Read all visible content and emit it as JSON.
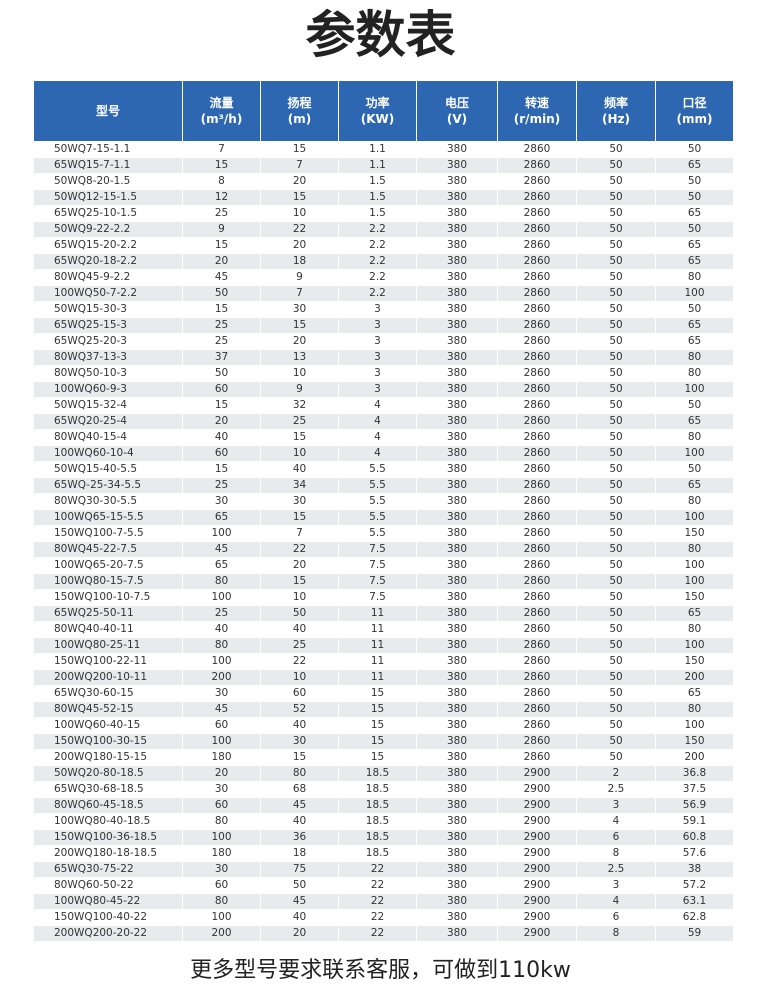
{
  "header": {
    "title": "参数表"
  },
  "table": {
    "columns": [
      {
        "name": "型号"
      },
      {
        "name": "流量",
        "unit": "(m³/h)"
      },
      {
        "name": "扬程",
        "unit": "(m)"
      },
      {
        "name": "功率",
        "unit": "(KW)"
      },
      {
        "name": "电压",
        "unit": "(V)"
      },
      {
        "name": "转速",
        "unit": "(r/min)"
      },
      {
        "name": "频率",
        "unit": "(Hz)"
      },
      {
        "name": "口径",
        "unit": "(mm)"
      }
    ],
    "rows": [
      [
        "50WQ7-15-1.1",
        "7",
        "15",
        "1.1",
        "380",
        "2860",
        "50",
        "50"
      ],
      [
        "65WQ15-7-1.1",
        "15",
        "7",
        "1.1",
        "380",
        "2860",
        "50",
        "65"
      ],
      [
        "50WQ8-20-1.5",
        "8",
        "20",
        "1.5",
        "380",
        "2860",
        "50",
        "50"
      ],
      [
        "50WQ12-15-1.5",
        "12",
        "15",
        "1.5",
        "380",
        "2860",
        "50",
        "50"
      ],
      [
        "65WQ25-10-1.5",
        "25",
        "10",
        "1.5",
        "380",
        "2860",
        "50",
        "65"
      ],
      [
        "50WQ9-22-2.2",
        "9",
        "22",
        "2.2",
        "380",
        "2860",
        "50",
        "50"
      ],
      [
        "65WQ15-20-2.2",
        "15",
        "20",
        "2.2",
        "380",
        "2860",
        "50",
        "65"
      ],
      [
        "65WQ20-18-2.2",
        "20",
        "18",
        "2.2",
        "380",
        "2860",
        "50",
        "65"
      ],
      [
        "80WQ45-9-2.2",
        "45",
        "9",
        "2.2",
        "380",
        "2860",
        "50",
        "80"
      ],
      [
        "100WQ50-7-2.2",
        "50",
        "7",
        "2.2",
        "380",
        "2860",
        "50",
        "100"
      ],
      [
        "50WQ15-30-3",
        "15",
        "30",
        "3",
        "380",
        "2860",
        "50",
        "50"
      ],
      [
        "65WQ25-15-3",
        "25",
        "15",
        "3",
        "380",
        "2860",
        "50",
        "65"
      ],
      [
        "65WQ25-20-3",
        "25",
        "20",
        "3",
        "380",
        "2860",
        "50",
        "65"
      ],
      [
        "80WQ37-13-3",
        "37",
        "13",
        "3",
        "380",
        "2860",
        "50",
        "80"
      ],
      [
        "80WQ50-10-3",
        "50",
        "10",
        "3",
        "380",
        "2860",
        "50",
        "80"
      ],
      [
        "100WQ60-9-3",
        "60",
        "9",
        "3",
        "380",
        "2860",
        "50",
        "100"
      ],
      [
        "50WQ15-32-4",
        "15",
        "32",
        "4",
        "380",
        "2860",
        "50",
        "50"
      ],
      [
        "65WQ20-25-4",
        "20",
        "25",
        "4",
        "380",
        "2860",
        "50",
        "65"
      ],
      [
        "80WQ40-15-4",
        "40",
        "15",
        "4",
        "380",
        "2860",
        "50",
        "80"
      ],
      [
        "100WQ60-10-4",
        "60",
        "10",
        "4",
        "380",
        "2860",
        "50",
        "100"
      ],
      [
        "50WQ15-40-5.5",
        "15",
        "40",
        "5.5",
        "380",
        "2860",
        "50",
        "50"
      ],
      [
        "65WQ-25-34-5.5",
        "25",
        "34",
        "5.5",
        "380",
        "2860",
        "50",
        "65"
      ],
      [
        "80WQ30-30-5.5",
        "30",
        "30",
        "5.5",
        "380",
        "2860",
        "50",
        "80"
      ],
      [
        "100WQ65-15-5.5",
        "65",
        "15",
        "5.5",
        "380",
        "2860",
        "50",
        "100"
      ],
      [
        "150WQ100-7-5.5",
        "100",
        "7",
        "5.5",
        "380",
        "2860",
        "50",
        "150"
      ],
      [
        "80WQ45-22-7.5",
        "45",
        "22",
        "7.5",
        "380",
        "2860",
        "50",
        "80"
      ],
      [
        "100WQ65-20-7.5",
        "65",
        "20",
        "7.5",
        "380",
        "2860",
        "50",
        "100"
      ],
      [
        "100WQ80-15-7.5",
        "80",
        "15",
        "7.5",
        "380",
        "2860",
        "50",
        "100"
      ],
      [
        "150WQ100-10-7.5",
        "100",
        "10",
        "7.5",
        "380",
        "2860",
        "50",
        "150"
      ],
      [
        "65WQ25-50-11",
        "25",
        "50",
        "11",
        "380",
        "2860",
        "50",
        "65"
      ],
      [
        "80WQ40-40-11",
        "40",
        "40",
        "11",
        "380",
        "2860",
        "50",
        "80"
      ],
      [
        "100WQ80-25-11",
        "80",
        "25",
        "11",
        "380",
        "2860",
        "50",
        "100"
      ],
      [
        "150WQ100-22-11",
        "100",
        "22",
        "11",
        "380",
        "2860",
        "50",
        "150"
      ],
      [
        "200WQ200-10-11",
        "200",
        "10",
        "11",
        "380",
        "2860",
        "50",
        "200"
      ],
      [
        "65WQ30-60-15",
        "30",
        "60",
        "15",
        "380",
        "2860",
        "50",
        "65"
      ],
      [
        "80WQ45-52-15",
        "45",
        "52",
        "15",
        "380",
        "2860",
        "50",
        "80"
      ],
      [
        "100WQ60-40-15",
        "60",
        "40",
        "15",
        "380",
        "2860",
        "50",
        "100"
      ],
      [
        "150WQ100-30-15",
        "100",
        "30",
        "15",
        "380",
        "2860",
        "50",
        "150"
      ],
      [
        "200WQ180-15-15",
        "180",
        "15",
        "15",
        "380",
        "2860",
        "50",
        "200"
      ],
      [
        "50WQ20-80-18.5",
        "20",
        "80",
        "18.5",
        "380",
        "2900",
        "2",
        "36.8"
      ],
      [
        "65WQ30-68-18.5",
        "30",
        "68",
        "18.5",
        "380",
        "2900",
        "2.5",
        "37.5"
      ],
      [
        "80WQ60-45-18.5",
        "60",
        "45",
        "18.5",
        "380",
        "2900",
        "3",
        "56.9"
      ],
      [
        "100WQ80-40-18.5",
        "80",
        "40",
        "18.5",
        "380",
        "2900",
        "4",
        "59.1"
      ],
      [
        "150WQ100-36-18.5",
        "100",
        "36",
        "18.5",
        "380",
        "2900",
        "6",
        "60.8"
      ],
      [
        "200WQ180-18-18.5",
        "180",
        "18",
        "18.5",
        "380",
        "2900",
        "8",
        "57.6"
      ],
      [
        "65WQ30-75-22",
        "30",
        "75",
        "22",
        "380",
        "2900",
        "2.5",
        "38"
      ],
      [
        "80WQ60-50-22",
        "60",
        "50",
        "22",
        "380",
        "2900",
        "3",
        "57.2"
      ],
      [
        "100WQ80-45-22",
        "80",
        "45",
        "22",
        "380",
        "2900",
        "4",
        "63.1"
      ],
      [
        "150WQ100-40-22",
        "100",
        "40",
        "22",
        "380",
        "2900",
        "6",
        "62.8"
      ],
      [
        "200WQ200-20-22",
        "200",
        "20",
        "22",
        "380",
        "2900",
        "8",
        "59"
      ]
    ]
  },
  "footer": {
    "note": "更多型号要求联系客服，可做到110kw"
  }
}
